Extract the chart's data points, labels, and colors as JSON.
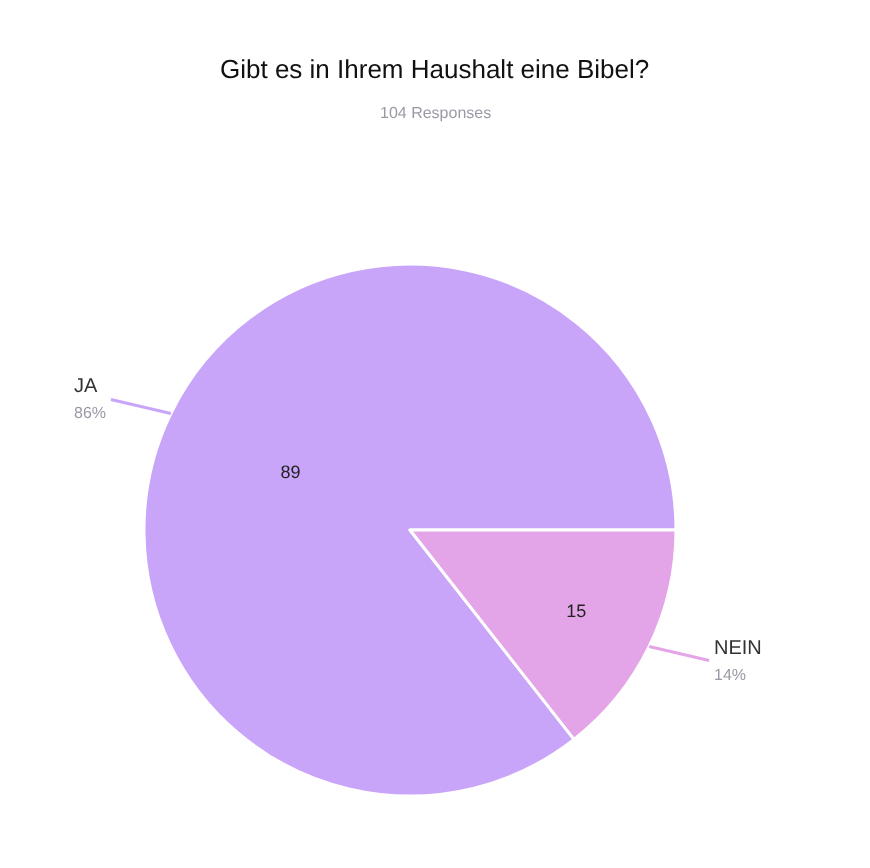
{
  "chart_data": {
    "type": "pie",
    "title": "Gibt es in Ihrem Haushalt eine Bibel?",
    "subtitle": "104 Responses",
    "categories": [
      "JA",
      "NEIN"
    ],
    "values": [
      89,
      15
    ],
    "colors": [
      "#c9a5fa",
      "#e3a5e8"
    ],
    "value_labels": [
      "89",
      "15"
    ],
    "annotations": [
      "86%",
      "14%"
    ],
    "legend": false
  }
}
